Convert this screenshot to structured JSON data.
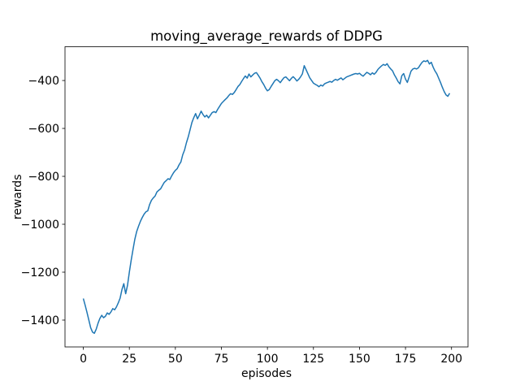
{
  "figure": {
    "background": "#ffffff",
    "spine_color": "#000000"
  },
  "chart_data": {
    "type": "line",
    "title": "moving_average_rewards of DDPG",
    "xlabel": "episodes",
    "ylabel": "rewards",
    "grid": false,
    "xlim": [
      -9.95,
      208.95
    ],
    "ylim": [
      -1512,
      -259
    ],
    "xticks": [
      {
        "value": 0,
        "label": "0"
      },
      {
        "value": 25,
        "label": "25"
      },
      {
        "value": 50,
        "label": "50"
      },
      {
        "value": 75,
        "label": "75"
      },
      {
        "value": 100,
        "label": "100"
      },
      {
        "value": 125,
        "label": "125"
      },
      {
        "value": 150,
        "label": "150"
      },
      {
        "value": 175,
        "label": "175"
      },
      {
        "value": 200,
        "label": "200"
      }
    ],
    "yticks": [
      {
        "value": -400,
        "label": "−400"
      },
      {
        "value": -600,
        "label": "−600"
      },
      {
        "value": -800,
        "label": "−800"
      },
      {
        "value": -1000,
        "label": "−1000"
      },
      {
        "value": -1200,
        "label": "−1200"
      },
      {
        "value": -1400,
        "label": "−1400"
      }
    ],
    "series": [
      {
        "name": "moving_average_rewards",
        "color": "#1f77b4",
        "line_width": 1.5,
        "x_start": 0,
        "x_step": 1,
        "values": [
          -1310,
          -1338,
          -1368,
          -1400,
          -1432,
          -1450,
          -1455,
          -1438,
          -1413,
          -1393,
          -1380,
          -1390,
          -1384,
          -1370,
          -1376,
          -1366,
          -1352,
          -1357,
          -1345,
          -1328,
          -1308,
          -1272,
          -1248,
          -1290,
          -1255,
          -1200,
          -1150,
          -1105,
          -1062,
          -1030,
          -1008,
          -988,
          -972,
          -958,
          -948,
          -944,
          -918,
          -900,
          -890,
          -882,
          -865,
          -858,
          -852,
          -838,
          -825,
          -818,
          -810,
          -813,
          -798,
          -785,
          -775,
          -768,
          -752,
          -740,
          -710,
          -690,
          -660,
          -635,
          -605,
          -575,
          -555,
          -538,
          -560,
          -545,
          -528,
          -542,
          -552,
          -545,
          -556,
          -545,
          -534,
          -530,
          -534,
          -520,
          -508,
          -496,
          -488,
          -480,
          -473,
          -463,
          -455,
          -458,
          -450,
          -438,
          -425,
          -417,
          -404,
          -392,
          -381,
          -390,
          -373,
          -385,
          -377,
          -370,
          -367,
          -378,
          -390,
          -405,
          -417,
          -432,
          -443,
          -438,
          -425,
          -413,
          -401,
          -395,
          -401,
          -409,
          -398,
          -388,
          -385,
          -393,
          -401,
          -391,
          -384,
          -392,
          -402,
          -395,
          -385,
          -372,
          -338,
          -355,
          -372,
          -389,
          -400,
          -411,
          -416,
          -420,
          -426,
          -419,
          -423,
          -414,
          -410,
          -407,
          -404,
          -407,
          -400,
          -395,
          -399,
          -394,
          -389,
          -397,
          -391,
          -385,
          -382,
          -379,
          -376,
          -373,
          -371,
          -373,
          -370,
          -377,
          -382,
          -374,
          -366,
          -370,
          -376,
          -368,
          -374,
          -366,
          -354,
          -346,
          -339,
          -333,
          -337,
          -330,
          -343,
          -352,
          -360,
          -377,
          -390,
          -405,
          -414,
          -380,
          -371,
          -394,
          -408,
          -385,
          -361,
          -352,
          -349,
          -352,
          -347,
          -335,
          -324,
          -318,
          -321,
          -316,
          -331,
          -324,
          -344,
          -360,
          -372,
          -390,
          -408,
          -428,
          -446,
          -460,
          -466,
          -453
        ]
      }
    ]
  }
}
